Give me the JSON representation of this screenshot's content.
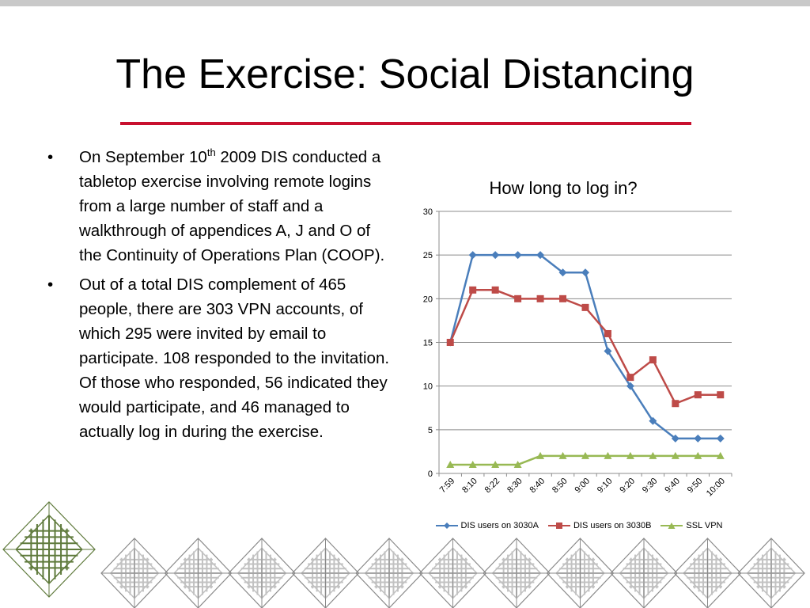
{
  "slide": {
    "title": "The Exercise: Social Distancing",
    "accent_color": "#c8102e",
    "bullet_glyph": "•",
    "bullets": [
      {
        "before_sup": "On September 10",
        "sup": "th",
        "after_sup": " 2009 DIS conducted a tabletop exercise involving remote logins from a large number of staff and a walkthrough of appendices A, J and O of the Continuity of Operations Plan (COOP)."
      },
      {
        "text": "Out of a total DIS complement of 465 people, there are 303 VPN accounts, of which 295 were invited by email to participate. 108 responded to the invitation. Of those who responded, 56 indicated they would participate, and 46 managed to actually log in during the exercise."
      }
    ]
  },
  "chart_data": {
    "type": "line",
    "title": "How long to log in?",
    "categories": [
      "7:59",
      "8:10",
      "8:22",
      "8:30",
      "8:40",
      "8:50",
      "9:00",
      "9:10",
      "9:20",
      "9:30",
      "9:40",
      "9:50",
      "10:00"
    ],
    "y_ticks": [
      "0",
      "5",
      "10",
      "15",
      "20",
      "25",
      "30"
    ],
    "ylim": [
      0,
      30
    ],
    "grid": true,
    "legend_position": "bottom",
    "series": [
      {
        "name": "DIS users on 3030A",
        "color": "#4a7ebb",
        "marker": "diamond",
        "values": [
          15,
          25,
          25,
          25,
          25,
          23,
          23,
          14,
          10,
          6,
          4,
          4,
          4
        ]
      },
      {
        "name": "DIS users on 3030B",
        "color": "#be4b48",
        "marker": "square",
        "values": [
          15,
          21,
          21,
          20,
          20,
          20,
          19,
          16,
          11,
          13,
          8,
          9,
          9
        ]
      },
      {
        "name": "SSL VPN",
        "color": "#98b954",
        "marker": "triangle",
        "values": [
          1,
          1,
          1,
          1,
          2,
          2,
          2,
          2,
          2,
          2,
          2,
          2,
          2
        ]
      }
    ]
  },
  "decoration": {
    "motif_color": "#c2c2c2",
    "motif_border_color": "#8a8a8a",
    "big_motif_color": "#5f7a3c"
  }
}
